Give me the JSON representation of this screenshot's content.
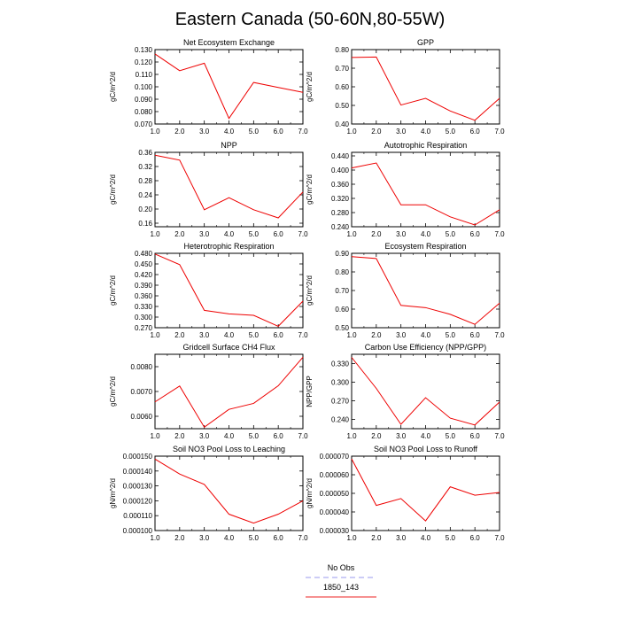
{
  "figure": {
    "title": "Eastern Canada (50-60N,80-55W)",
    "legend": [
      {
        "label": "No Obs",
        "color": "#9999ee",
        "style": "dashed"
      },
      {
        "label": "1850_143",
        "color": "#ee2222",
        "style": "solid"
      }
    ],
    "line_color": "#ee0000"
  },
  "chart_data": [
    {
      "type": "line",
      "title": "Net Ecosystem Exchange",
      "ylabel": "gC/m^2/d",
      "x": [
        1,
        2,
        3,
        4,
        5,
        6,
        7
      ],
      "xticks": [
        "1.0",
        "2.0",
        "3.0",
        "4.0",
        "5.0",
        "6.0",
        "7.0"
      ],
      "xlim": [
        1,
        7
      ],
      "ylim": [
        0.07,
        0.13
      ],
      "yticks": [
        "0.070",
        "0.080",
        "0.090",
        "0.100",
        "0.110",
        "0.120",
        "0.130"
      ],
      "series": [
        {
          "values": [
            0.1265,
            0.113,
            0.119,
            0.0745,
            0.1035,
            0.0995,
            0.0955
          ]
        }
      ]
    },
    {
      "type": "line",
      "title": "GPP",
      "ylabel": "gC/m^2/d",
      "x": [
        1,
        2,
        3,
        4,
        5,
        6,
        7
      ],
      "xticks": [
        "1.0",
        "2.0",
        "3.0",
        "4.0",
        "5.0",
        "6.0",
        "7.0"
      ],
      "xlim": [
        1,
        7
      ],
      "ylim": [
        0.4,
        0.8
      ],
      "yticks": [
        "0.40",
        "0.50",
        "0.60",
        "0.70",
        "0.80"
      ],
      "series": [
        {
          "values": [
            0.758,
            0.76,
            0.502,
            0.538,
            0.47,
            0.42,
            0.538
          ]
        }
      ]
    },
    {
      "type": "line",
      "title": "NPP",
      "ylabel": "gC/m^2/d",
      "x": [
        1,
        2,
        3,
        4,
        5,
        6,
        7
      ],
      "xticks": [
        "1.0",
        "2.0",
        "3.0",
        "4.0",
        "5.0",
        "6.0",
        "7.0"
      ],
      "xlim": [
        1,
        7
      ],
      "ylim": [
        0.15,
        0.36
      ],
      "yticks": [
        "0.16",
        "0.20",
        "0.24",
        "0.28",
        "0.32",
        "0.36"
      ],
      "series": [
        {
          "values": [
            0.352,
            0.338,
            0.198,
            0.232,
            0.198,
            0.175,
            0.248
          ]
        }
      ]
    },
    {
      "type": "line",
      "title": "Autotrophic Respiration",
      "ylabel": "gC/m^2/d",
      "x": [
        1,
        2,
        3,
        4,
        5,
        6,
        7
      ],
      "xticks": [
        "1.0",
        "2.0",
        "3.0",
        "4.0",
        "5.0",
        "6.0",
        "7.0"
      ],
      "xlim": [
        1,
        7
      ],
      "ylim": [
        0.24,
        0.45
      ],
      "yticks": [
        "0.240",
        "0.280",
        "0.320",
        "0.360",
        "0.400",
        "0.440"
      ],
      "series": [
        {
          "values": [
            0.406,
            0.42,
            0.302,
            0.302,
            0.268,
            0.245,
            0.288
          ]
        }
      ]
    },
    {
      "type": "line",
      "title": "Heterotrophic Respiration",
      "ylabel": "gC/m^2/d",
      "x": [
        1,
        2,
        3,
        4,
        5,
        6,
        7
      ],
      "xticks": [
        "1.0",
        "2.0",
        "3.0",
        "4.0",
        "5.0",
        "6.0",
        "7.0"
      ],
      "xlim": [
        1,
        7
      ],
      "ylim": [
        0.27,
        0.48
      ],
      "yticks": [
        "0.270",
        "0.300",
        "0.330",
        "0.360",
        "0.390",
        "0.420",
        "0.450",
        "0.480"
      ],
      "series": [
        {
          "values": [
            0.478,
            0.448,
            0.319,
            0.309,
            0.305,
            0.274,
            0.345
          ]
        }
      ]
    },
    {
      "type": "line",
      "title": "Ecosystem Respiration",
      "ylabel": "gC/m^2/d",
      "x": [
        1,
        2,
        3,
        4,
        5,
        6,
        7
      ],
      "xticks": [
        "1.0",
        "2.0",
        "3.0",
        "4.0",
        "5.0",
        "6.0",
        "7.0"
      ],
      "xlim": [
        1,
        7
      ],
      "ylim": [
        0.5,
        0.9
      ],
      "yticks": [
        "0.50",
        "0.60",
        "0.70",
        "0.80",
        "0.90"
      ],
      "series": [
        {
          "values": [
            0.882,
            0.872,
            0.62,
            0.608,
            0.572,
            0.518,
            0.632
          ]
        }
      ]
    },
    {
      "type": "line",
      "title": "Gridcell Surface CH4 Flux",
      "ylabel": "gC/m^2/d",
      "x": [
        1,
        2,
        3,
        4,
        5,
        6,
        7
      ],
      "xticks": [
        "1.0",
        "2.0",
        "3.0",
        "4.0",
        "5.0",
        "6.0",
        "7.0"
      ],
      "xlim": [
        1,
        7
      ],
      "ylim": [
        0.0055,
        0.0085
      ],
      "yticks": [
        "0.0060",
        "0.0070",
        "0.0080"
      ],
      "series": [
        {
          "values": [
            0.00658,
            0.00722,
            0.00556,
            0.00628,
            0.00652,
            0.00723,
            0.00838
          ]
        }
      ]
    },
    {
      "type": "line",
      "title": "Carbon Use Efficiency (NPP/GPP)",
      "ylabel": "NPP/GPP",
      "x": [
        1,
        2,
        3,
        4,
        5,
        6,
        7
      ],
      "xticks": [
        "1.0",
        "2.0",
        "3.0",
        "4.0",
        "5.0",
        "6.0",
        "7.0"
      ],
      "xlim": [
        1,
        7
      ],
      "ylim": [
        0.225,
        0.345
      ],
      "yticks": [
        "0.240",
        "0.270",
        "0.300",
        "0.330"
      ],
      "series": [
        {
          "values": [
            0.34,
            0.29,
            0.232,
            0.275,
            0.242,
            0.231,
            0.268
          ]
        }
      ]
    },
    {
      "type": "line",
      "title": "Soil NO3 Pool Loss to Leaching",
      "ylabel": "gN/m^2/d",
      "x": [
        1,
        2,
        3,
        4,
        5,
        6,
        7
      ],
      "xticks": [
        "1.0",
        "2.0",
        "3.0",
        "4.0",
        "5.0",
        "6.0",
        "7.0"
      ],
      "xlim": [
        1,
        7
      ],
      "ylim": [
        0.0001,
        0.00015
      ],
      "yticks": [
        "0.000100",
        "0.000110",
        "0.000120",
        "0.000130",
        "0.000140",
        "0.000150"
      ],
      "series": [
        {
          "values": [
            0.000148,
            0.000138,
            0.000131,
            0.000111,
            0.000105,
            0.000111,
            0.00012
          ]
        }
      ]
    },
    {
      "type": "line",
      "title": "Soil NO3 Pool Loss to Runoff",
      "ylabel": "gN/m^2/d",
      "x": [
        1,
        2,
        3,
        4,
        5,
        6,
        7
      ],
      "xticks": [
        "1.0",
        "2.0",
        "3.0",
        "4.0",
        "5.0",
        "6.0",
        "7.0"
      ],
      "xlim": [
        1,
        7
      ],
      "ylim": [
        3e-05,
        7e-05
      ],
      "yticks": [
        "0.000030",
        "0.000040",
        "0.000050",
        "0.000060",
        "0.000070"
      ],
      "series": [
        {
          "values": [
            6.85e-05,
            4.35e-05,
            4.72e-05,
            3.52e-05,
            5.35e-05,
            4.9e-05,
            5.05e-05
          ]
        }
      ]
    }
  ]
}
